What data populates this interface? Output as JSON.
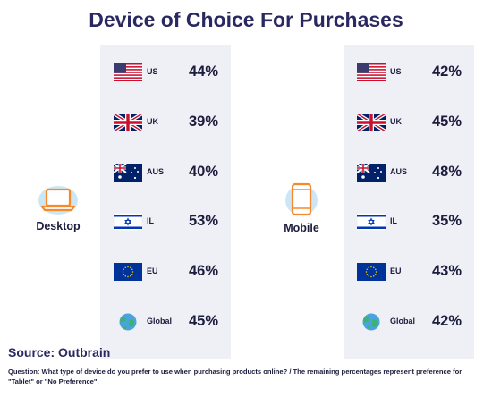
{
  "title": "Device of Choice For Purchases",
  "source": "Source: Outbrain",
  "note": "Question: What type of device do you prefer to use when purchasing products online? / The remaining percentages represent preference for \"Tablet\" or \"No Preference\".",
  "chart_data": {
    "type": "table",
    "title": "Device of Choice For Purchases",
    "categories": [
      "US",
      "UK",
      "AUS",
      "IL",
      "EU",
      "Global"
    ],
    "series": [
      {
        "name": "Desktop",
        "values": [
          44,
          39,
          40,
          53,
          46,
          45
        ]
      },
      {
        "name": "Mobile",
        "values": [
          42,
          45,
          48,
          35,
          43,
          42
        ]
      }
    ],
    "unit": "%"
  },
  "panels": [
    {
      "label": "Desktop",
      "icon": "laptop-icon",
      "accent": "#f5892b",
      "rows": [
        {
          "country": "US",
          "value": "44%",
          "flag": "us-flag-icon"
        },
        {
          "country": "UK",
          "value": "39%",
          "flag": "uk-flag-icon"
        },
        {
          "country": "AUS",
          "value": "40%",
          "flag": "australia-flag-icon"
        },
        {
          "country": "IL",
          "value": "53%",
          "flag": "israel-flag-icon"
        },
        {
          "country": "EU",
          "value": "46%",
          "flag": "eu-flag-icon"
        },
        {
          "country": "Global",
          "value": "45%",
          "flag": "globe-icon"
        }
      ]
    },
    {
      "label": "Mobile",
      "icon": "smartphone-icon",
      "accent": "#f5892b",
      "rows": [
        {
          "country": "US",
          "value": "42%",
          "flag": "us-flag-icon"
        },
        {
          "country": "UK",
          "value": "45%",
          "flag": "uk-flag-icon"
        },
        {
          "country": "AUS",
          "value": "48%",
          "flag": "australia-flag-icon"
        },
        {
          "country": "IL",
          "value": "35%",
          "flag": "israel-flag-icon"
        },
        {
          "country": "EU",
          "value": "43%",
          "flag": "eu-flag-icon"
        },
        {
          "country": "Global",
          "value": "42%",
          "flag": "globe-icon"
        }
      ]
    }
  ]
}
